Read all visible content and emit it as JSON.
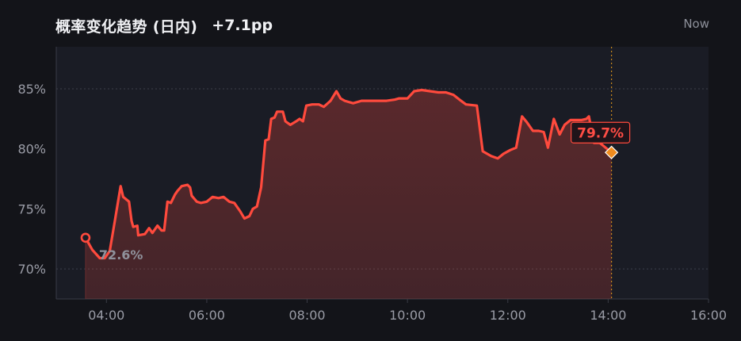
{
  "header": {
    "title": "概率变化趋势 (日内)",
    "change": "+7.1pp",
    "now_label": "Now"
  },
  "colors": {
    "background": "#131419",
    "plot_background": "#1a1c25",
    "line": "#ff4a3d",
    "end_marker": "#f08c1e",
    "start_marker": "#ff4a3d"
  },
  "chart_data": {
    "type": "area",
    "x_unit": "time of day",
    "xlim": [
      "03:00",
      "16:00"
    ],
    "ylim": [
      67.5,
      88.5
    ],
    "x_ticks": [
      "04:00",
      "06:00",
      "08:00",
      "10:00",
      "12:00",
      "14:00",
      "16:00"
    ],
    "y_ticks": [
      "70%",
      "75%",
      "80%",
      "85%"
    ],
    "grid": "dotted horizontal at 70% and 85%",
    "start_label": "72.6%",
    "end_label": "79.7%",
    "series": [
      {
        "points": [
          [
            "03:35",
            72.6
          ],
          [
            "03:43",
            71.6
          ],
          [
            "03:52",
            70.9
          ],
          [
            "03:58",
            70.9
          ],
          [
            "04:04",
            71.5
          ],
          [
            "04:10",
            74.0
          ],
          [
            "04:17",
            76.9
          ],
          [
            "04:20",
            76.0
          ],
          [
            "04:27",
            75.6
          ],
          [
            "04:30",
            74.0
          ],
          [
            "04:32",
            73.5
          ],
          [
            "04:37",
            73.6
          ],
          [
            "04:38",
            72.8
          ],
          [
            "04:46",
            72.9
          ],
          [
            "04:51",
            73.4
          ],
          [
            "04:55",
            73.0
          ],
          [
            "05:01",
            73.6
          ],
          [
            "05:06",
            73.2
          ],
          [
            "05:09",
            73.2
          ],
          [
            "05:13",
            75.6
          ],
          [
            "05:17",
            75.5
          ],
          [
            "05:22",
            76.2
          ],
          [
            "05:25",
            76.5
          ],
          [
            "05:30",
            76.9
          ],
          [
            "05:37",
            77.0
          ],
          [
            "05:40",
            76.8
          ],
          [
            "05:42",
            76.1
          ],
          [
            "05:48",
            75.6
          ],
          [
            "05:53",
            75.5
          ],
          [
            "06:00",
            75.6
          ],
          [
            "06:07",
            76.0
          ],
          [
            "06:14",
            75.9
          ],
          [
            "06:20",
            76.0
          ],
          [
            "06:27",
            75.6
          ],
          [
            "06:33",
            75.5
          ],
          [
            "06:40",
            74.8
          ],
          [
            "06:45",
            74.2
          ],
          [
            "06:51",
            74.4
          ],
          [
            "06:55",
            75.0
          ],
          [
            "07:00",
            75.2
          ],
          [
            "07:05",
            76.8
          ],
          [
            "07:10",
            80.7
          ],
          [
            "07:14",
            80.8
          ],
          [
            "07:17",
            82.5
          ],
          [
            "07:21",
            82.6
          ],
          [
            "07:24",
            83.1
          ],
          [
            "07:31",
            83.1
          ],
          [
            "07:34",
            82.3
          ],
          [
            "07:40",
            82.0
          ],
          [
            "07:47",
            82.3
          ],
          [
            "07:51",
            82.5
          ],
          [
            "07:55",
            82.3
          ],
          [
            "07:59",
            83.6
          ],
          [
            "08:06",
            83.7
          ],
          [
            "08:14",
            83.7
          ],
          [
            "08:20",
            83.5
          ],
          [
            "08:28",
            84.0
          ],
          [
            "08:35",
            84.8
          ],
          [
            "08:40",
            84.2
          ],
          [
            "08:45",
            84.0
          ],
          [
            "08:55",
            83.8
          ],
          [
            "09:05",
            84.0
          ],
          [
            "09:15",
            84.0
          ],
          [
            "09:25",
            84.0
          ],
          [
            "09:35",
            84.0
          ],
          [
            "09:45",
            84.1
          ],
          [
            "09:50",
            84.2
          ],
          [
            "10:00",
            84.2
          ],
          [
            "10:08",
            84.8
          ],
          [
            "10:17",
            84.9
          ],
          [
            "10:27",
            84.8
          ],
          [
            "10:37",
            84.7
          ],
          [
            "10:46",
            84.7
          ],
          [
            "10:55",
            84.5
          ],
          [
            "11:04",
            84.0
          ],
          [
            "11:10",
            83.7
          ],
          [
            "11:23",
            83.6
          ],
          [
            "11:30",
            79.8
          ],
          [
            "11:40",
            79.4
          ],
          [
            "11:48",
            79.2
          ],
          [
            "11:55",
            79.6
          ],
          [
            "12:03",
            79.9
          ],
          [
            "12:10",
            80.1
          ],
          [
            "12:17",
            82.7
          ],
          [
            "12:23",
            82.2
          ],
          [
            "12:30",
            81.5
          ],
          [
            "12:37",
            81.5
          ],
          [
            "12:43",
            81.4
          ],
          [
            "12:48",
            80.1
          ],
          [
            "12:55",
            82.5
          ],
          [
            "13:02",
            81.2
          ],
          [
            "13:08",
            82.0
          ],
          [
            "13:15",
            82.4
          ],
          [
            "13:22",
            82.4
          ],
          [
            "13:28",
            82.4
          ],
          [
            "13:34",
            82.5
          ],
          [
            "13:37",
            82.7
          ],
          [
            "13:43",
            80.5
          ],
          [
            "13:50",
            80.5
          ],
          [
            "13:57",
            80.1
          ],
          [
            "14:04",
            79.7
          ]
        ]
      }
    ]
  }
}
